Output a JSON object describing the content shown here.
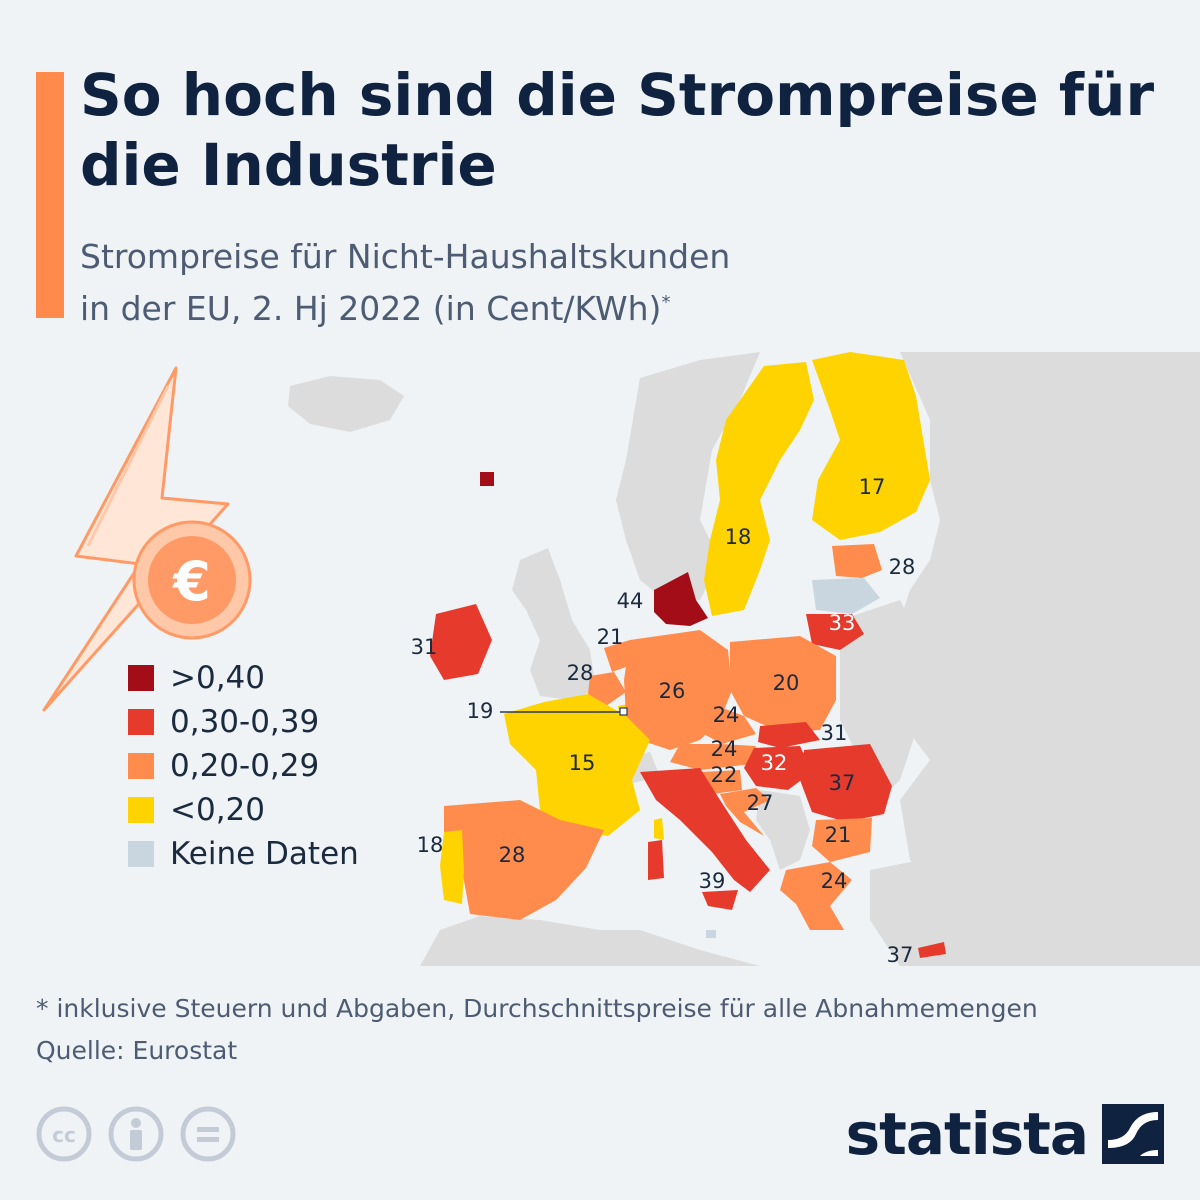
{
  "title": "So hoch sind die Strompreise für die Industrie",
  "subtitle_line1": "Strompreise für Nicht-Haushaltskunden",
  "subtitle_line2": "in der EU, 2. Hj 2022 (in Cent/KWh)",
  "subtitle_sup": "*",
  "colors": {
    "accent": "#ff8a4c",
    "title": "#0f2240",
    "background": "#eff3f6",
    "land_other": "#dcdcdc",
    "sea": "#eff3f6"
  },
  "legend": [
    {
      "label": ">0,40",
      "color": "#a30d17"
    },
    {
      "label": "0,30-0,39",
      "color": "#e63a2c"
    },
    {
      "label": "0,20-0,29",
      "color": "#ff8c4c"
    },
    {
      "label": "<0,20",
      "color": "#fed300"
    },
    {
      "label": "Keine Daten",
      "color": "#c9d6e0"
    }
  ],
  "map_labels": {
    "finland": "17",
    "sweden": "18",
    "estonia": "28",
    "lithuania": "33",
    "denmark": "44",
    "netherlands": "21",
    "belgium": "28",
    "luxembourg": "19",
    "ireland": "31",
    "germany": "26",
    "poland": "20",
    "czechia": "24",
    "slovakia": "31",
    "austria": "24",
    "hungary": "32",
    "romania": "37",
    "slovenia": "22",
    "croatia": "27",
    "france": "15",
    "bulgaria": "21",
    "portugal": "18",
    "spain": "28",
    "italy": "39",
    "greece": "24",
    "cyprus": "37"
  },
  "icons": {
    "illustration": "lightning-euro-icon",
    "license": [
      "cc-icon",
      "attribution-icon",
      "noderivs-icon"
    ],
    "brand": "statista-logo-icon"
  },
  "footnote_line1": "* inklusive Steuern und Abgaben, Durchschnittspreise für alle Abnahmemengen",
  "footnote_line2": "Quelle: Eurostat",
  "brand_name": "statista"
}
